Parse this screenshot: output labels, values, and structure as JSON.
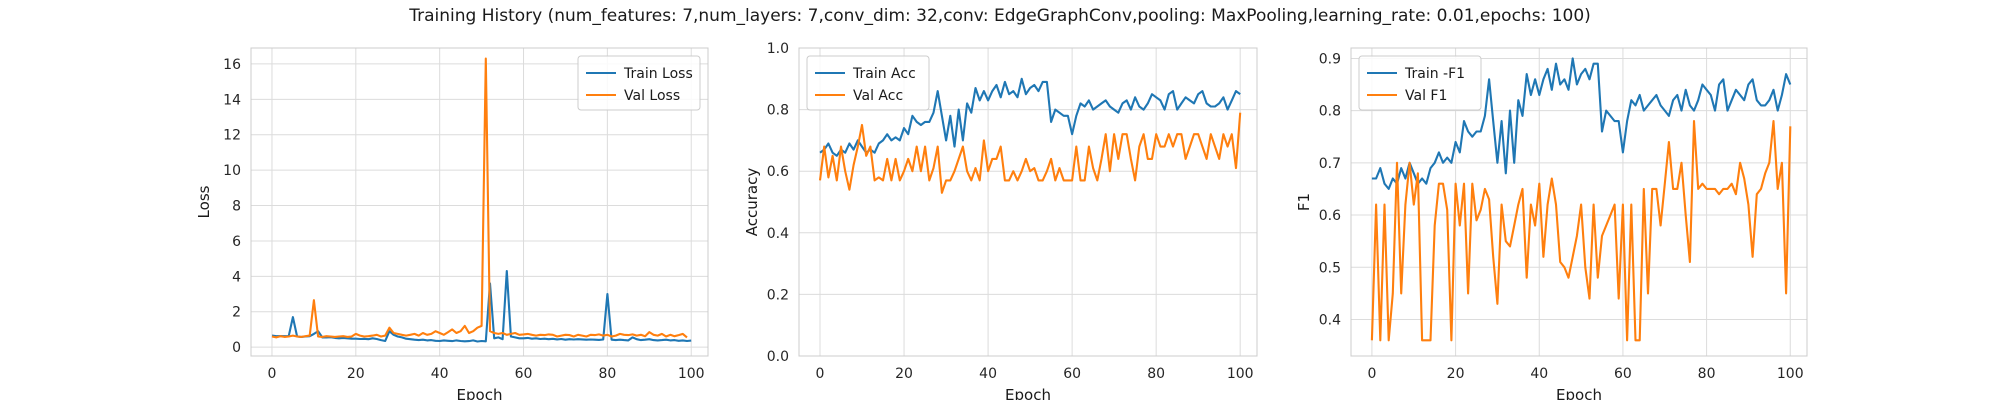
{
  "suptitle": "Training History (num_features: 7,num_layers: 7,conv_dim: 32,conv: EdgeGraphConv,pooling: MaxPooling,learning_rate: 0.01,epochs: 100)",
  "colors": {
    "train": "#1f77b4",
    "val": "#ff7f0e",
    "grid": "#dcdcdc",
    "frame": "#cccccc"
  },
  "chart_data": [
    {
      "type": "line",
      "xlabel": "Epoch",
      "ylabel": "Loss",
      "xlim": [
        -5,
        104
      ],
      "ylim": [
        -0.5,
        16.9
      ],
      "xticks": [
        0,
        20,
        40,
        60,
        80,
        100
      ],
      "yticks": [
        0,
        2,
        4,
        6,
        8,
        10,
        12,
        14,
        16
      ],
      "legend_position": "upper right",
      "grid": true,
      "series": [
        {
          "name": "Train Loss",
          "color": "#1f77b4",
          "x_start": 0,
          "values": [
            0.65,
            0.62,
            0.63,
            0.62,
            0.62,
            1.7,
            0.6,
            0.58,
            0.6,
            0.62,
            0.75,
            0.9,
            0.55,
            0.55,
            0.56,
            0.52,
            0.5,
            0.52,
            0.5,
            0.48,
            0.48,
            0.46,
            0.47,
            0.45,
            0.5,
            0.46,
            0.4,
            0.35,
            0.9,
            0.7,
            0.6,
            0.55,
            0.48,
            0.45,
            0.42,
            0.4,
            0.42,
            0.38,
            0.4,
            0.36,
            0.35,
            0.38,
            0.36,
            0.34,
            0.38,
            0.35,
            0.33,
            0.34,
            0.38,
            0.32,
            0.35,
            0.33,
            3.6,
            0.5,
            0.55,
            0.45,
            4.3,
            0.6,
            0.55,
            0.5,
            0.5,
            0.52,
            0.48,
            0.5,
            0.46,
            0.48,
            0.45,
            0.47,
            0.44,
            0.46,
            0.42,
            0.45,
            0.43,
            0.45,
            0.44,
            0.42,
            0.43,
            0.42,
            0.41,
            0.43,
            3.0,
            0.42,
            0.4,
            0.42,
            0.4,
            0.38,
            0.55,
            0.45,
            0.4,
            0.42,
            0.45,
            0.4,
            0.38,
            0.4,
            0.42,
            0.38,
            0.4,
            0.36,
            0.38,
            0.35,
            0.37
          ]
        },
        {
          "name": "Val Loss",
          "color": "#ff7f0e",
          "x_start": 0,
          "values": [
            0.6,
            0.55,
            0.62,
            0.58,
            0.6,
            0.65,
            0.6,
            0.58,
            0.62,
            0.65,
            2.65,
            0.6,
            0.58,
            0.62,
            0.6,
            0.58,
            0.6,
            0.62,
            0.58,
            0.6,
            0.75,
            0.65,
            0.6,
            0.62,
            0.65,
            0.7,
            0.6,
            0.65,
            1.1,
            0.8,
            0.75,
            0.7,
            0.65,
            0.7,
            0.75,
            0.65,
            0.8,
            0.7,
            0.75,
            0.9,
            0.8,
            0.7,
            0.85,
            1.0,
            0.8,
            0.9,
            1.2,
            0.8,
            0.9,
            1.1,
            1.2,
            16.3,
            0.9,
            0.8,
            0.75,
            0.8,
            0.7,
            0.75,
            0.8,
            0.7,
            0.72,
            0.75,
            0.7,
            0.65,
            0.7,
            0.68,
            0.72,
            0.7,
            0.6,
            0.65,
            0.7,
            0.68,
            0.6,
            0.7,
            0.65,
            0.6,
            0.7,
            0.68,
            0.72,
            0.65,
            0.7,
            0.6,
            0.65,
            0.75,
            0.7,
            0.68,
            0.72,
            0.65,
            0.7,
            0.62,
            0.85,
            0.7,
            0.65,
            0.75,
            0.6,
            0.7,
            0.62,
            0.68,
            0.75,
            0.55
          ]
        }
      ]
    },
    {
      "type": "line",
      "xlabel": "Epoch",
      "ylabel": "Accuracy",
      "xlim": [
        -5,
        104
      ],
      "ylim": [
        0.0,
        1.0
      ],
      "xticks": [
        0,
        20,
        40,
        60,
        80,
        100
      ],
      "yticks": [
        0.0,
        0.2,
        0.4,
        0.6,
        0.8,
        1.0
      ],
      "legend_position": "upper left",
      "grid": true,
      "series": [
        {
          "name": "Train Acc",
          "color": "#1f77b4",
          "x_start": 0,
          "values": [
            0.66,
            0.67,
            0.69,
            0.66,
            0.65,
            0.67,
            0.66,
            0.69,
            0.67,
            0.7,
            0.68,
            0.66,
            0.67,
            0.66,
            0.69,
            0.7,
            0.72,
            0.7,
            0.71,
            0.7,
            0.74,
            0.72,
            0.78,
            0.76,
            0.75,
            0.76,
            0.76,
            0.79,
            0.86,
            0.78,
            0.7,
            0.78,
            0.68,
            0.8,
            0.7,
            0.82,
            0.79,
            0.87,
            0.83,
            0.86,
            0.83,
            0.86,
            0.88,
            0.84,
            0.89,
            0.85,
            0.86,
            0.84,
            0.9,
            0.85,
            0.87,
            0.88,
            0.86,
            0.89,
            0.89,
            0.76,
            0.8,
            0.79,
            0.78,
            0.78,
            0.72,
            0.78,
            0.82,
            0.81,
            0.83,
            0.8,
            0.81,
            0.82,
            0.83,
            0.81,
            0.8,
            0.79,
            0.82,
            0.83,
            0.8,
            0.84,
            0.81,
            0.8,
            0.82,
            0.85,
            0.84,
            0.83,
            0.8,
            0.85,
            0.86,
            0.8,
            0.82,
            0.84,
            0.83,
            0.82,
            0.85,
            0.86,
            0.82,
            0.81,
            0.81,
            0.82,
            0.84,
            0.8,
            0.83,
            0.86,
            0.85
          ]
        },
        {
          "name": "Val Acc",
          "color": "#ff7f0e",
          "x_start": 0,
          "values": [
            0.57,
            0.68,
            0.58,
            0.65,
            0.57,
            0.68,
            0.6,
            0.54,
            0.62,
            0.68,
            0.75,
            0.65,
            0.68,
            0.57,
            0.58,
            0.57,
            0.64,
            0.57,
            0.64,
            0.57,
            0.6,
            0.64,
            0.6,
            0.68,
            0.6,
            0.68,
            0.57,
            0.61,
            0.68,
            0.53,
            0.57,
            0.57,
            0.6,
            0.64,
            0.68,
            0.6,
            0.57,
            0.61,
            0.57,
            0.7,
            0.6,
            0.64,
            0.64,
            0.68,
            0.57,
            0.57,
            0.6,
            0.57,
            0.6,
            0.64,
            0.6,
            0.61,
            0.57,
            0.57,
            0.6,
            0.64,
            0.57,
            0.61,
            0.57,
            0.57,
            0.57,
            0.68,
            0.57,
            0.57,
            0.68,
            0.61,
            0.57,
            0.64,
            0.72,
            0.6,
            0.72,
            0.64,
            0.72,
            0.72,
            0.64,
            0.57,
            0.68,
            0.72,
            0.64,
            0.64,
            0.72,
            0.68,
            0.68,
            0.72,
            0.68,
            0.72,
            0.72,
            0.64,
            0.68,
            0.72,
            0.72,
            0.68,
            0.64,
            0.72,
            0.68,
            0.64,
            0.72,
            0.68,
            0.72,
            0.61,
            0.79
          ]
        }
      ]
    },
    {
      "type": "line",
      "xlabel": "Epoch",
      "ylabel": "F1",
      "xlim": [
        -5,
        104
      ],
      "ylim": [
        0.33,
        0.92
      ],
      "xticks": [
        0,
        20,
        40,
        60,
        80,
        100
      ],
      "yticks": [
        0.4,
        0.5,
        0.6,
        0.7,
        0.8,
        0.9
      ],
      "legend_position": "upper left",
      "grid": true,
      "series": [
        {
          "name": "Train -F1",
          "color": "#1f77b4",
          "x_start": 0,
          "values": [
            0.67,
            0.67,
            0.69,
            0.66,
            0.65,
            0.67,
            0.66,
            0.69,
            0.67,
            0.7,
            0.68,
            0.66,
            0.67,
            0.66,
            0.69,
            0.7,
            0.72,
            0.7,
            0.71,
            0.7,
            0.74,
            0.72,
            0.78,
            0.76,
            0.75,
            0.76,
            0.76,
            0.79,
            0.86,
            0.78,
            0.7,
            0.78,
            0.68,
            0.8,
            0.7,
            0.82,
            0.79,
            0.87,
            0.83,
            0.86,
            0.83,
            0.86,
            0.88,
            0.84,
            0.89,
            0.85,
            0.86,
            0.84,
            0.9,
            0.85,
            0.87,
            0.88,
            0.86,
            0.89,
            0.89,
            0.76,
            0.8,
            0.79,
            0.78,
            0.78,
            0.72,
            0.78,
            0.82,
            0.81,
            0.83,
            0.8,
            0.81,
            0.82,
            0.83,
            0.81,
            0.8,
            0.79,
            0.82,
            0.83,
            0.8,
            0.84,
            0.81,
            0.8,
            0.82,
            0.85,
            0.84,
            0.83,
            0.8,
            0.85,
            0.86,
            0.8,
            0.82,
            0.84,
            0.83,
            0.82,
            0.85,
            0.86,
            0.82,
            0.81,
            0.81,
            0.82,
            0.84,
            0.8,
            0.83,
            0.87,
            0.85
          ]
        },
        {
          "name": "Val F1",
          "color": "#ff7f0e",
          "x_start": 0,
          "values": [
            0.36,
            0.62,
            0.36,
            0.62,
            0.36,
            0.45,
            0.7,
            0.45,
            0.62,
            0.7,
            0.62,
            0.68,
            0.36,
            0.36,
            0.36,
            0.58,
            0.66,
            0.66,
            0.61,
            0.36,
            0.66,
            0.58,
            0.66,
            0.45,
            0.66,
            0.59,
            0.61,
            0.65,
            0.63,
            0.52,
            0.43,
            0.62,
            0.55,
            0.54,
            0.58,
            0.62,
            0.65,
            0.48,
            0.62,
            0.58,
            0.66,
            0.52,
            0.62,
            0.67,
            0.62,
            0.51,
            0.5,
            0.48,
            0.52,
            0.56,
            0.62,
            0.5,
            0.44,
            0.62,
            0.48,
            0.56,
            0.58,
            0.6,
            0.62,
            0.44,
            0.62,
            0.36,
            0.62,
            0.36,
            0.36,
            0.65,
            0.45,
            0.65,
            0.65,
            0.58,
            0.66,
            0.74,
            0.65,
            0.65,
            0.7,
            0.6,
            0.51,
            0.78,
            0.65,
            0.66,
            0.65,
            0.65,
            0.65,
            0.64,
            0.65,
            0.65,
            0.66,
            0.64,
            0.7,
            0.67,
            0.62,
            0.52,
            0.64,
            0.65,
            0.68,
            0.7,
            0.78,
            0.65,
            0.7,
            0.45,
            0.77
          ]
        }
      ]
    }
  ]
}
